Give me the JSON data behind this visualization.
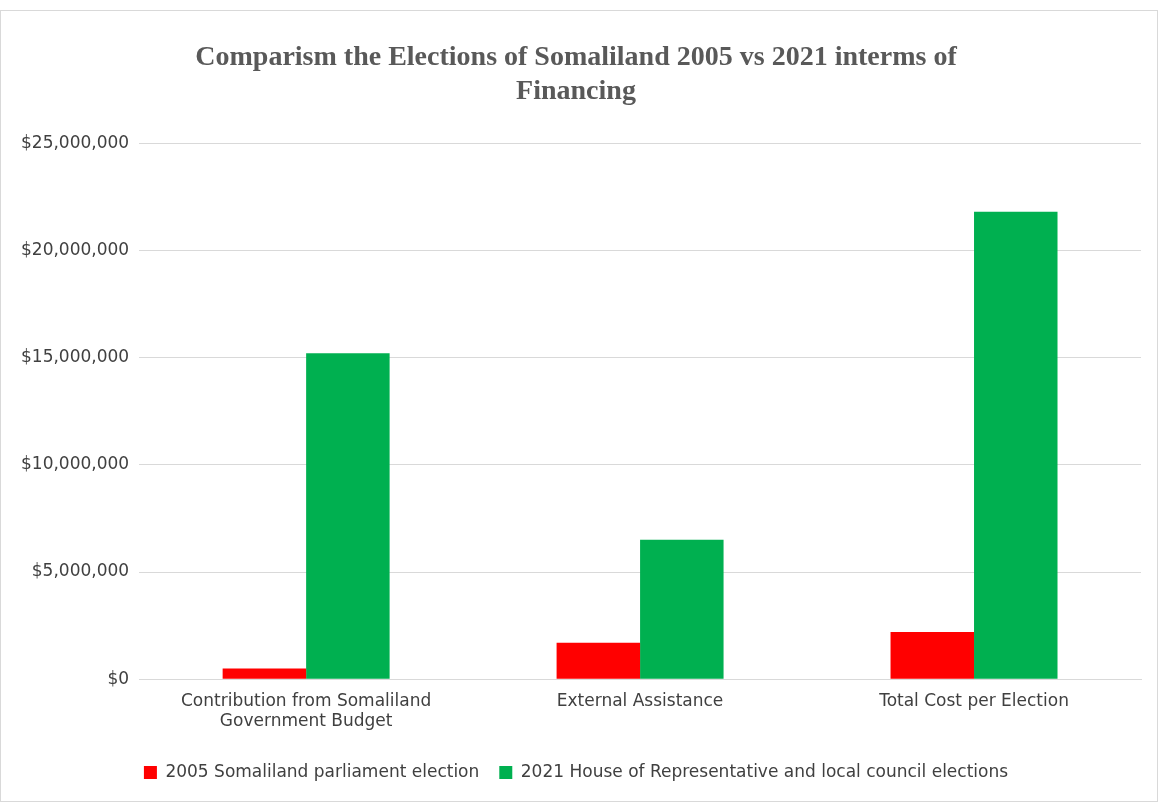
{
  "chart_data": {
    "type": "bar",
    "title": "Comparism the Elections of Somaliland 2005 vs 2021 interms of Financing",
    "categories": [
      "Contribution from Somaliland Government Budget",
      "External Assistance",
      "Total Cost per Election"
    ],
    "series": [
      {
        "name": "2005 Somaliland parliament election",
        "color": "#ff0000",
        "values": [
          500000,
          1700000,
          2200000
        ]
      },
      {
        "name": "2021 House of Representative and local council elections",
        "color": "#00b050",
        "values": [
          15200000,
          6500000,
          21800000
        ]
      }
    ],
    "ylim": [
      0,
      25000000
    ],
    "yticks": [
      {
        "value": 0,
        "label": "$0"
      },
      {
        "value": 5000000,
        "label": "$5,000,000"
      },
      {
        "value": 10000000,
        "label": "$10,000,000"
      },
      {
        "value": 15000000,
        "label": "$15,000,000"
      },
      {
        "value": 20000000,
        "label": "$20,000,000"
      },
      {
        "value": 25000000,
        "label": "$25,000,000"
      }
    ],
    "grid": "y",
    "legend": "bottom"
  }
}
